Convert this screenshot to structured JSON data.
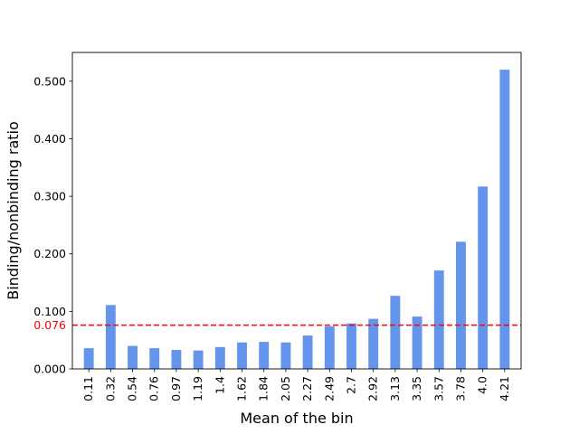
{
  "chart_data": {
    "type": "bar",
    "title": "",
    "xlabel": "Mean of the bin",
    "ylabel": "Binding/nonbinding ratio",
    "categories": [
      "0.11",
      "0.32",
      "0.54",
      "0.76",
      "0.97",
      "1.19",
      "1.4",
      "1.62",
      "1.84",
      "2.05",
      "2.27",
      "2.49",
      "2.7",
      "2.92",
      "3.13",
      "3.35",
      "3.57",
      "3.78",
      "4.0",
      "4.21"
    ],
    "values": [
      0.036,
      0.111,
      0.04,
      0.036,
      0.033,
      0.032,
      0.038,
      0.046,
      0.047,
      0.046,
      0.058,
      0.074,
      0.079,
      0.087,
      0.127,
      0.091,
      0.171,
      0.221,
      0.317,
      0.52
    ],
    "ylim": [
      0,
      0.55
    ],
    "yticks": [
      0.0,
      0.1,
      0.2,
      0.3,
      0.4,
      0.5
    ],
    "ytick_labels": [
      "0.000",
      "0.100",
      "0.200",
      "0.300",
      "0.400",
      "0.500"
    ],
    "grid": false,
    "bar_color": "#6495ED",
    "reference_line": {
      "value": 0.076,
      "label": "0.076",
      "color": "#FF0000",
      "style": "dashed"
    }
  }
}
